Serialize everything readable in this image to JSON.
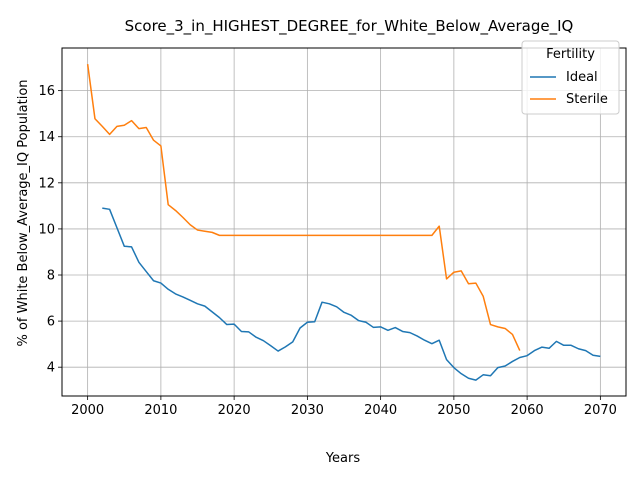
{
  "chart_data": {
    "type": "line",
    "title": "Score_3_in_HIGHEST_DEGREE_for_White_Below_Average_IQ",
    "xlabel": "Years",
    "ylabel": "% of White Below_Average_IQ Population",
    "xlim": [
      1996.5,
      2073.5
    ],
    "ylim": [
      2.75,
      17.85
    ],
    "xticks": [
      2000,
      2010,
      2020,
      2030,
      2040,
      2050,
      2060,
      2070
    ],
    "yticks": [
      4,
      6,
      8,
      10,
      12,
      14,
      16
    ],
    "grid": true,
    "legend": {
      "title": "Fertility",
      "placement": "upper right"
    },
    "series": [
      {
        "name": "Ideal",
        "color": "#1f77b4",
        "x": [
          2002,
          2003,
          2004,
          2005,
          2006,
          2007,
          2008,
          2009,
          2010,
          2011,
          2012,
          2013,
          2014,
          2015,
          2016,
          2017,
          2018,
          2019,
          2020,
          2021,
          2022,
          2023,
          2024,
          2025,
          2026,
          2027,
          2028,
          2029,
          2030,
          2031,
          2032,
          2033,
          2034,
          2035,
          2036,
          2037,
          2038,
          2039,
          2040,
          2041,
          2042,
          2043,
          2044,
          2045,
          2046,
          2047,
          2048,
          2049,
          2050,
          2051,
          2052,
          2053,
          2054,
          2055,
          2056,
          2057,
          2058,
          2059,
          2060,
          2061,
          2062,
          2063,
          2064,
          2065,
          2066,
          2067,
          2068,
          2069,
          2070
        ],
        "y": [
          10.9,
          10.85,
          10.05,
          9.25,
          9.22,
          8.55,
          8.15,
          7.75,
          7.65,
          7.38,
          7.18,
          7.05,
          6.9,
          6.75,
          6.65,
          6.4,
          6.15,
          5.85,
          5.87,
          5.55,
          5.53,
          5.3,
          5.15,
          4.93,
          4.7,
          4.88,
          5.1,
          5.7,
          5.95,
          5.97,
          6.82,
          6.75,
          6.62,
          6.38,
          6.25,
          6.02,
          5.95,
          5.73,
          5.75,
          5.6,
          5.72,
          5.55,
          5.5,
          5.35,
          5.17,
          5.02,
          5.17,
          4.33,
          3.98,
          3.72,
          3.52,
          3.44,
          3.67,
          3.63,
          3.98,
          4.05,
          4.25,
          4.42,
          4.5,
          4.72,
          4.87,
          4.82,
          5.12,
          4.95,
          4.95,
          4.8,
          4.72,
          4.52,
          4.47
        ]
      },
      {
        "name": "Sterile",
        "color": "#ff7f0e",
        "x": [
          2000,
          2001,
          2002,
          2003,
          2004,
          2005,
          2006,
          2007,
          2008,
          2009,
          2010,
          2011,
          2012,
          2013,
          2014,
          2015,
          2016,
          2017,
          2018,
          2019,
          2020,
          2021,
          2022,
          2023,
          2024,
          2025,
          2026,
          2027,
          2028,
          2029,
          2030,
          2031,
          2032,
          2033,
          2034,
          2035,
          2036,
          2037,
          2038,
          2039,
          2040,
          2041,
          2042,
          2043,
          2044,
          2045,
          2046,
          2047,
          2048,
          2049,
          2050,
          2051,
          2052,
          2053,
          2054,
          2055,
          2056,
          2057,
          2058,
          2059
        ],
        "y": [
          17.15,
          14.78,
          14.45,
          14.1,
          14.45,
          14.5,
          14.7,
          14.35,
          14.4,
          13.85,
          13.6,
          11.05,
          10.8,
          10.5,
          10.18,
          9.95,
          9.9,
          9.85,
          9.72,
          9.72,
          9.72,
          9.72,
          9.72,
          9.72,
          9.72,
          9.72,
          9.72,
          9.72,
          9.72,
          9.72,
          9.72,
          9.72,
          9.72,
          9.72,
          9.72,
          9.72,
          9.72,
          9.72,
          9.72,
          9.72,
          9.72,
          9.72,
          9.72,
          9.72,
          9.72,
          9.72,
          9.72,
          9.72,
          10.12,
          7.83,
          8.12,
          8.18,
          7.62,
          7.65,
          7.08,
          5.85,
          5.75,
          5.68,
          5.42,
          4.72
        ]
      }
    ]
  }
}
